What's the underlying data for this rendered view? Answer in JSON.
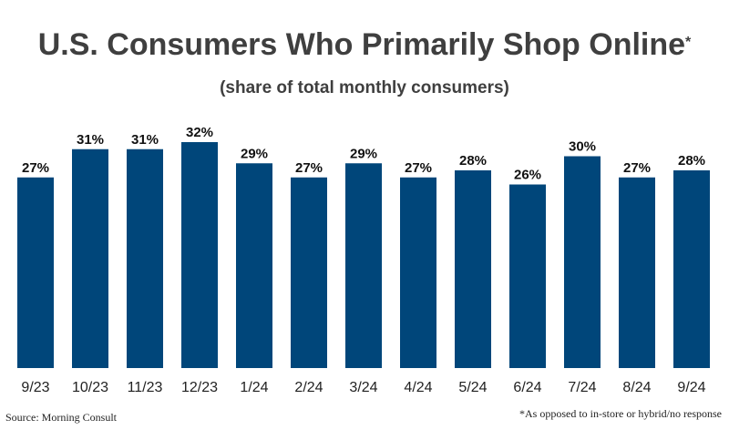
{
  "chart_data": {
    "type": "bar",
    "title": "U.S. Consumers Who Primarily Shop Online",
    "title_marker": "*",
    "subtitle": "(share of total monthly consumers)",
    "categories": [
      "9/23",
      "10/23",
      "11/23",
      "12/23",
      "1/24",
      "2/24",
      "3/24",
      "4/24",
      "5/24",
      "6/24",
      "7/24",
      "8/24",
      "9/24"
    ],
    "values": [
      27,
      31,
      31,
      32,
      29,
      27,
      29,
      27,
      28,
      26,
      30,
      27,
      28
    ],
    "value_labels": [
      "27%",
      "31%",
      "31%",
      "32%",
      "29%",
      "27%",
      "29%",
      "27%",
      "28%",
      "26%",
      "30%",
      "27%",
      "28%"
    ],
    "ylim": [
      0,
      32
    ],
    "bar_color": "#00467a",
    "grid": false,
    "source": "Source: Morning Consult",
    "footnote": "*As opposed to in-store or hybrid/no response"
  }
}
